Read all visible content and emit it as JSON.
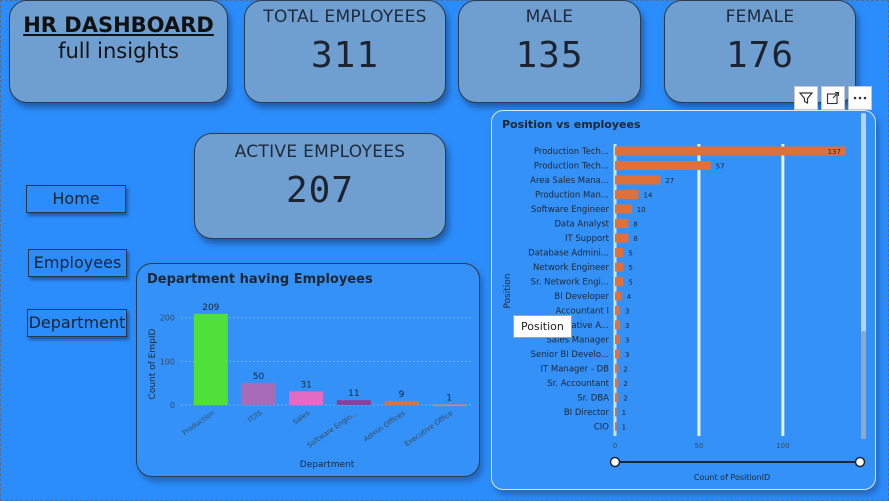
{
  "header": {
    "title": "HR DASHBOARD",
    "subtitle": "full insights"
  },
  "kpis": {
    "total": {
      "label": "TOTAL EMPLOYEES",
      "value": "311"
    },
    "male": {
      "label": "MALE",
      "value": "135"
    },
    "female": {
      "label": "FEMALE",
      "value": "176"
    },
    "active": {
      "label": "ACTIVE EMPLOYEES",
      "value": "207"
    }
  },
  "nav": {
    "home": "Home",
    "employees": "Employees",
    "department": "Department"
  },
  "tooltip": {
    "text": "Position"
  },
  "toolbar": {
    "filter_icon": "filter-icon",
    "focus_icon": "focus-mode-icon",
    "more_icon": "more-options-icon"
  },
  "colors": {
    "background": "#2b8dfb",
    "card": "#6f9fd0",
    "bar_orange": "#e0703a",
    "dept_colors": [
      "#4fe03a",
      "#a86bb8",
      "#e36bc3",
      "#8a3f9a",
      "#e0703a",
      "#e88a3a"
    ]
  },
  "chart_data": [
    {
      "type": "bar",
      "title": "Department having Employees",
      "xlabel": "Department",
      "ylabel": "Count of EmpID",
      "ylim": [
        0,
        220
      ],
      "yticks": [
        0,
        100,
        200
      ],
      "categories": [
        "Production",
        "IT/IS",
        "Sales",
        "Software Engin...",
        "Admin Offices",
        "Executive Office"
      ],
      "values": [
        209,
        50,
        31,
        11,
        9,
        1
      ],
      "grid": true
    },
    {
      "type": "bar",
      "orientation": "horizontal",
      "title": "Position vs employees",
      "xlabel": "Count of PositionID",
      "ylabel": "Position",
      "xlim": [
        0,
        140
      ],
      "xticks": [
        0,
        50,
        100
      ],
      "categories": [
        "Production Tech...",
        "Production Tech...",
        "Area Sales Mana...",
        "Production Man...",
        "Software Engineer",
        "Data Analyst",
        "IT Support",
        "Database Admini...",
        "Network Engineer",
        "Sr. Network Engi...",
        "BI Developer",
        "Accountant I",
        "Administrative A...",
        "Sales Manager",
        "Senior BI Develo...",
        "IT Manager - DB",
        "Sr. Accountant",
        "Sr. DBA",
        "BI Director",
        "CIO"
      ],
      "values": [
        137,
        57,
        27,
        14,
        10,
        8,
        8,
        5,
        5,
        5,
        4,
        3,
        3,
        3,
        3,
        2,
        2,
        2,
        1,
        1
      ],
      "grid": true
    }
  ]
}
